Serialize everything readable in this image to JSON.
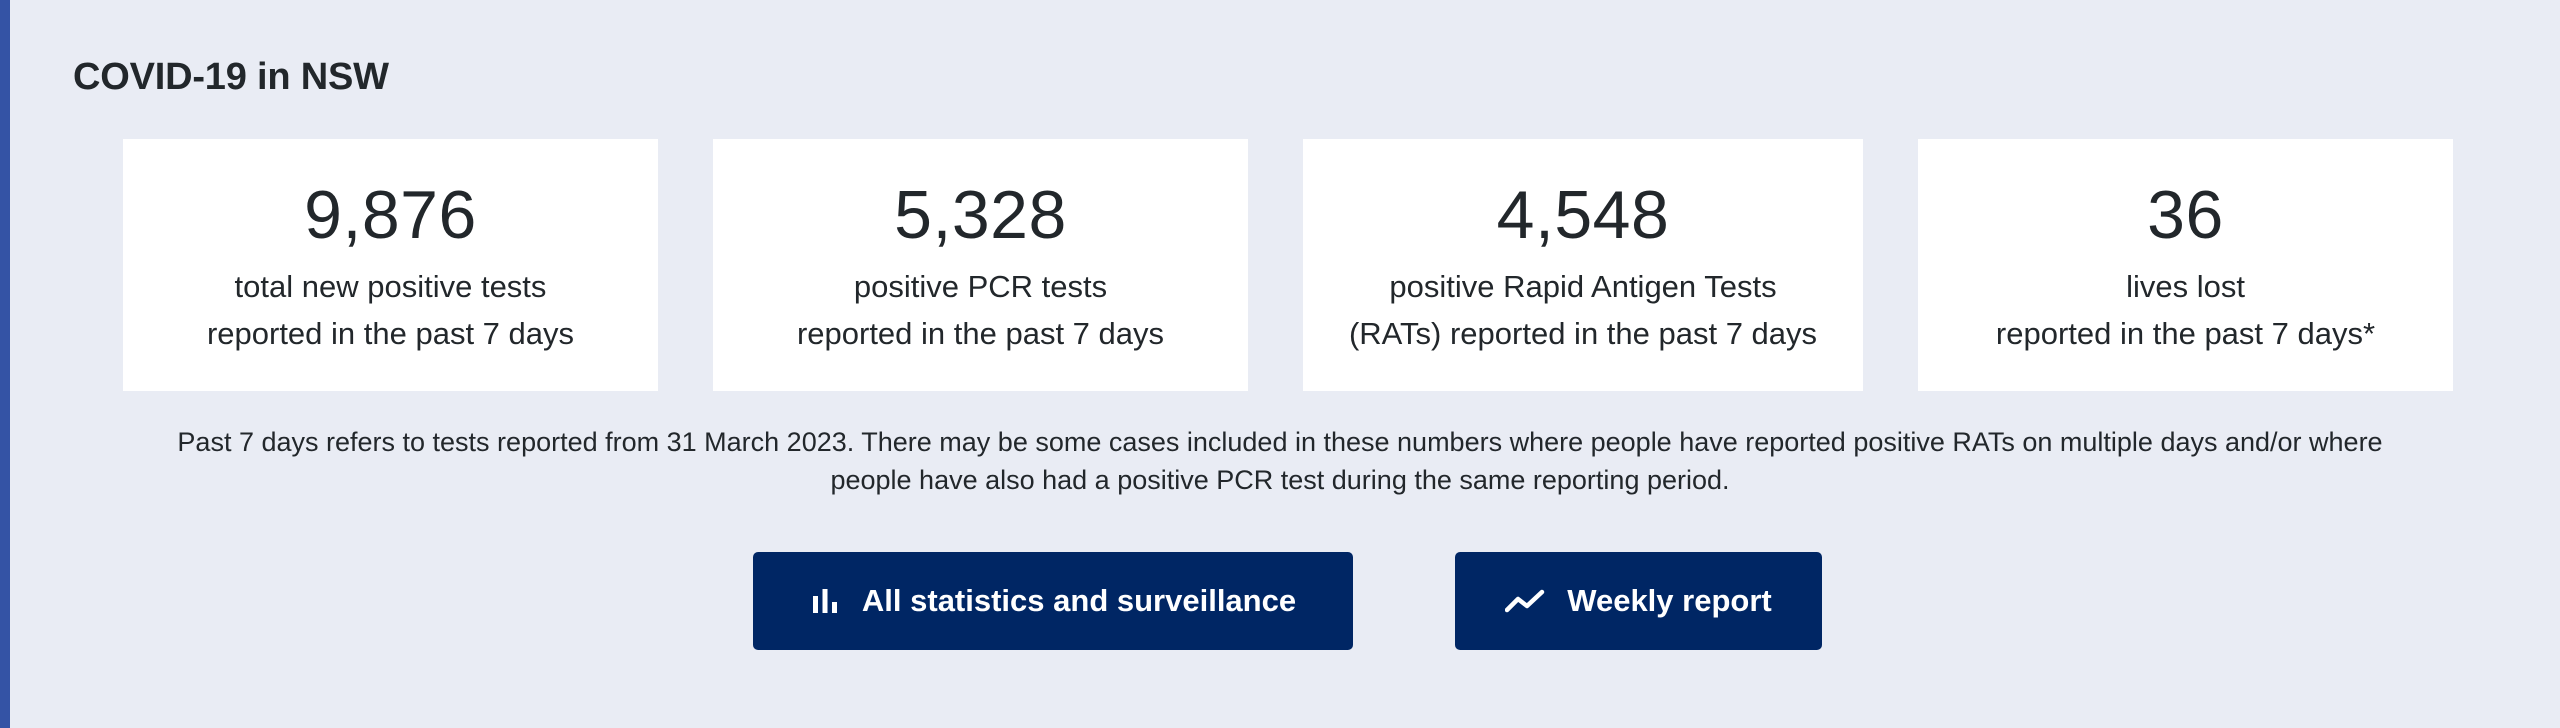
{
  "section": {
    "title": "COVID-19 in NSW"
  },
  "stats": [
    {
      "value": "9,876",
      "label_line1": "total new positive tests",
      "label_line2": "reported in the past 7 days"
    },
    {
      "value": "5,328",
      "label_line1": "positive PCR tests",
      "label_line2": "reported in the past 7 days"
    },
    {
      "value": "4,548",
      "label_line1": "positive Rapid Antigen Tests",
      "label_line2": "(RATs) reported in the past 7 days"
    },
    {
      "value": "36",
      "label_line1": "lives lost",
      "label_line2": "reported in the past 7 days*"
    }
  ],
  "footnote": "Past 7 days refers to tests reported from 31 March 2023. There may be some cases included in these numbers where people have reported positive RATs on multiple days and/or where people have also had a positive PCR test during the same reporting period.",
  "buttons": {
    "statistics": {
      "label": "All statistics and surveillance",
      "icon": "bar-chart-icon"
    },
    "weekly": {
      "label": "Weekly report",
      "icon": "trend-line-icon"
    }
  },
  "colors": {
    "page_background": "#e9ecf4",
    "accent_bar": "#3453a5",
    "button_background": "#002664",
    "card_background": "#ffffff",
    "text": "#22272b"
  }
}
